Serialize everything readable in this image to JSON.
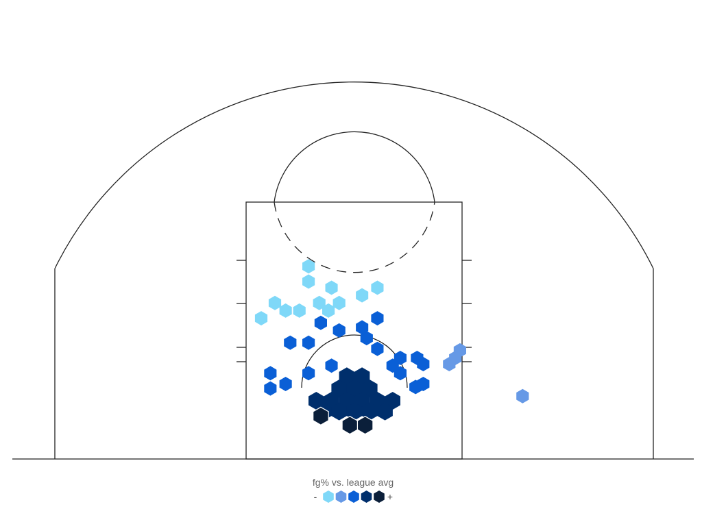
{
  "chart_data": {
    "type": "hexbin",
    "legend": {
      "title": "fg% vs. league avg",
      "low_label": "-",
      "high_label": "+",
      "levels": [
        {
          "level": 1,
          "color": "#7fd8f8"
        },
        {
          "level": 2,
          "color": "#6699e6"
        },
        {
          "level": 3,
          "color": "#0a5fd6"
        },
        {
          "level": 4,
          "color": "#002f6c"
        },
        {
          "level": 5,
          "color": "#0b1f3a"
        }
      ]
    },
    "shot_zones": [
      {
        "x": -3,
        "y": 6.2,
        "level": 1
      },
      {
        "x": -3,
        "y": 5.2,
        "level": 1
      },
      {
        "x": -1.5,
        "y": 4.8,
        "level": 1
      },
      {
        "x": 1.5,
        "y": 4.8,
        "level": 1
      },
      {
        "x": 0.5,
        "y": 4.3,
        "level": 1
      },
      {
        "x": -5.2,
        "y": 3.8,
        "level": 1
      },
      {
        "x": -4.5,
        "y": 3.3,
        "level": 1
      },
      {
        "x": -3.6,
        "y": 3.3,
        "level": 1
      },
      {
        "x": -1.7,
        "y": 3.3,
        "level": 1
      },
      {
        "x": -1.0,
        "y": 3.8,
        "level": 1
      },
      {
        "x": -2.3,
        "y": 3.8,
        "level": 1
      },
      {
        "x": -6.1,
        "y": 2.8,
        "level": 1
      },
      {
        "x": 6.9,
        "y": 0.7,
        "level": 2
      },
      {
        "x": 6.6,
        "y": 0.2,
        "level": 2
      },
      {
        "x": 6.2,
        "y": -0.2,
        "level": 2
      },
      {
        "x": 11,
        "y": -2.3,
        "level": 2
      },
      {
        "x": -2.2,
        "y": 2.5,
        "level": 3
      },
      {
        "x": -1.0,
        "y": 2.0,
        "level": 3
      },
      {
        "x": 0.5,
        "y": 2.2,
        "level": 3
      },
      {
        "x": 1.5,
        "y": 2.8,
        "level": 3
      },
      {
        "x": -4.2,
        "y": 1.2,
        "level": 3
      },
      {
        "x": -3.0,
        "y": 1.2,
        "level": 3
      },
      {
        "x": 0.8,
        "y": 1.5,
        "level": 3
      },
      {
        "x": 1.5,
        "y": 0.8,
        "level": 3
      },
      {
        "x": 3.0,
        "y": 0.2,
        "level": 3
      },
      {
        "x": 4.1,
        "y": 0.2,
        "level": 3
      },
      {
        "x": 4.5,
        "y": -0.2,
        "level": 3
      },
      {
        "x": -5.5,
        "y": -0.8,
        "level": 3
      },
      {
        "x": -3.0,
        "y": -0.8,
        "level": 3
      },
      {
        "x": -1.5,
        "y": -0.3,
        "level": 3
      },
      {
        "x": 2.5,
        "y": -0.3,
        "level": 3
      },
      {
        "x": 3.0,
        "y": -0.8,
        "level": 3
      },
      {
        "x": 4.5,
        "y": -1.5,
        "level": 3
      },
      {
        "x": -5.5,
        "y": -1.8,
        "level": 3
      },
      {
        "x": -4.5,
        "y": -1.5,
        "level": 3
      },
      {
        "x": 4.0,
        "y": -1.7,
        "level": 3
      },
      {
        "x": -0.5,
        "y": -1.0,
        "level": 4
      },
      {
        "x": 0.5,
        "y": -1.0,
        "level": 4
      },
      {
        "x": -1.0,
        "y": -1.8,
        "level": 4
      },
      {
        "x": 0.0,
        "y": -1.8,
        "level": 4
      },
      {
        "x": 1.0,
        "y": -1.8,
        "level": 4
      },
      {
        "x": -1.5,
        "y": -2.6,
        "level": 4
      },
      {
        "x": -0.5,
        "y": -2.6,
        "level": 4
      },
      {
        "x": 0.5,
        "y": -2.6,
        "level": 4
      },
      {
        "x": 1.5,
        "y": -2.6,
        "level": 4
      },
      {
        "x": -2.5,
        "y": -2.6,
        "level": 4
      },
      {
        "x": 2.5,
        "y": -2.6,
        "level": 4
      },
      {
        "x": -2.0,
        "y": -3.3,
        "level": 4
      },
      {
        "x": -1.0,
        "y": -3.3,
        "level": 4
      },
      {
        "x": 0.0,
        "y": -3.3,
        "level": 4
      },
      {
        "x": 1.0,
        "y": -3.3,
        "level": 4
      },
      {
        "x": 2.0,
        "y": -3.3,
        "level": 4
      },
      {
        "x": -0.3,
        "y": -4.2,
        "level": 5
      },
      {
        "x": 0.7,
        "y": -4.2,
        "level": 5
      },
      {
        "x": -2.2,
        "y": -3.6,
        "level": 5
      }
    ]
  }
}
